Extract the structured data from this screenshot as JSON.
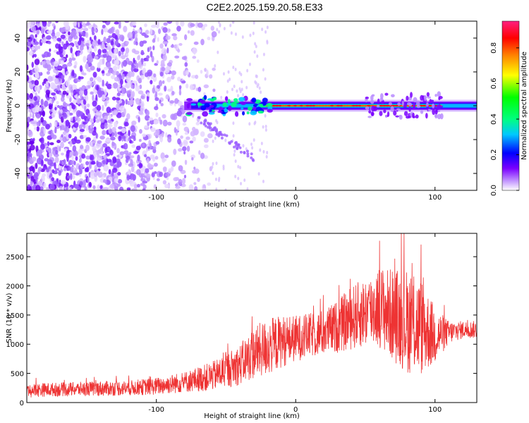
{
  "title": "C2E2.2025.159.20.58.E33",
  "chart_data": [
    {
      "type": "heatmap",
      "xlabel": "Height of straight line (km)",
      "ylabel": "Frequency (Hz)",
      "xlim": [
        -193,
        130
      ],
      "ylim": [
        -50,
        50
      ],
      "xticks": [
        -100,
        0,
        100
      ],
      "xtick_labels": [
        "-100",
        "0",
        "100"
      ],
      "yticks": [
        -40,
        -20,
        0,
        20,
        40
      ],
      "ytick_labels": [
        "-40",
        "-20",
        "0",
        "20",
        "40"
      ],
      "colorbar": {
        "label": "Normalized spectral amplitude",
        "range": [
          0,
          0.95
        ],
        "ticks": [
          0.0,
          0.2,
          0.4,
          0.6,
          0.8
        ],
        "tick_labels": [
          "0.0",
          "0.2",
          "0.4",
          "0.6",
          "0.8"
        ],
        "colormap": "rainbow"
      },
      "features": {
        "noise_region_x": [
          -193,
          -55
        ],
        "main_band_freq": 0,
        "main_band_x": [
          -80,
          130
        ],
        "high_amplitude_x": [
          -20,
          105
        ]
      },
      "grid": false
    },
    {
      "type": "line",
      "xlabel": "Height of straight line (km)",
      "ylabel": "SNR (10 * v/v)",
      "xlim": [
        -193,
        130
      ],
      "ylim": [
        0,
        2900
      ],
      "xticks": [
        -100,
        0,
        100
      ],
      "xtick_labels": [
        "-100",
        "0",
        "100"
      ],
      "yticks": [
        0,
        500,
        1000,
        1500,
        2000,
        2500
      ],
      "ytick_labels": [
        "0",
        "500",
        "1000",
        "1500",
        "2000",
        "2500"
      ],
      "color": "#ee3333",
      "grid": false,
      "series": [
        {
          "x": [
            -193,
            -180,
            -160,
            -140,
            -120,
            -100,
            -80,
            -60,
            -50,
            -40,
            -30,
            -20,
            -10,
            0,
            10,
            20,
            30,
            40,
            50,
            60,
            70,
            80,
            90,
            100,
            110,
            120,
            130
          ],
          "y": [
            200,
            220,
            230,
            240,
            250,
            280,
            350,
            450,
            550,
            650,
            850,
            950,
            1050,
            1100,
            1150,
            1200,
            1300,
            1450,
            1550,
            1650,
            1500,
            1400,
            1300,
            1150,
            1200,
            1250,
            1250
          ],
          "amplitude": [
            120,
            120,
            120,
            130,
            130,
            150,
            180,
            250,
            300,
            350,
            450,
            500,
            450,
            400,
            380,
            400,
            450,
            550,
            600,
            700,
            800,
            900,
            850,
            500,
            200,
            150,
            150
          ]
        }
      ]
    }
  ]
}
